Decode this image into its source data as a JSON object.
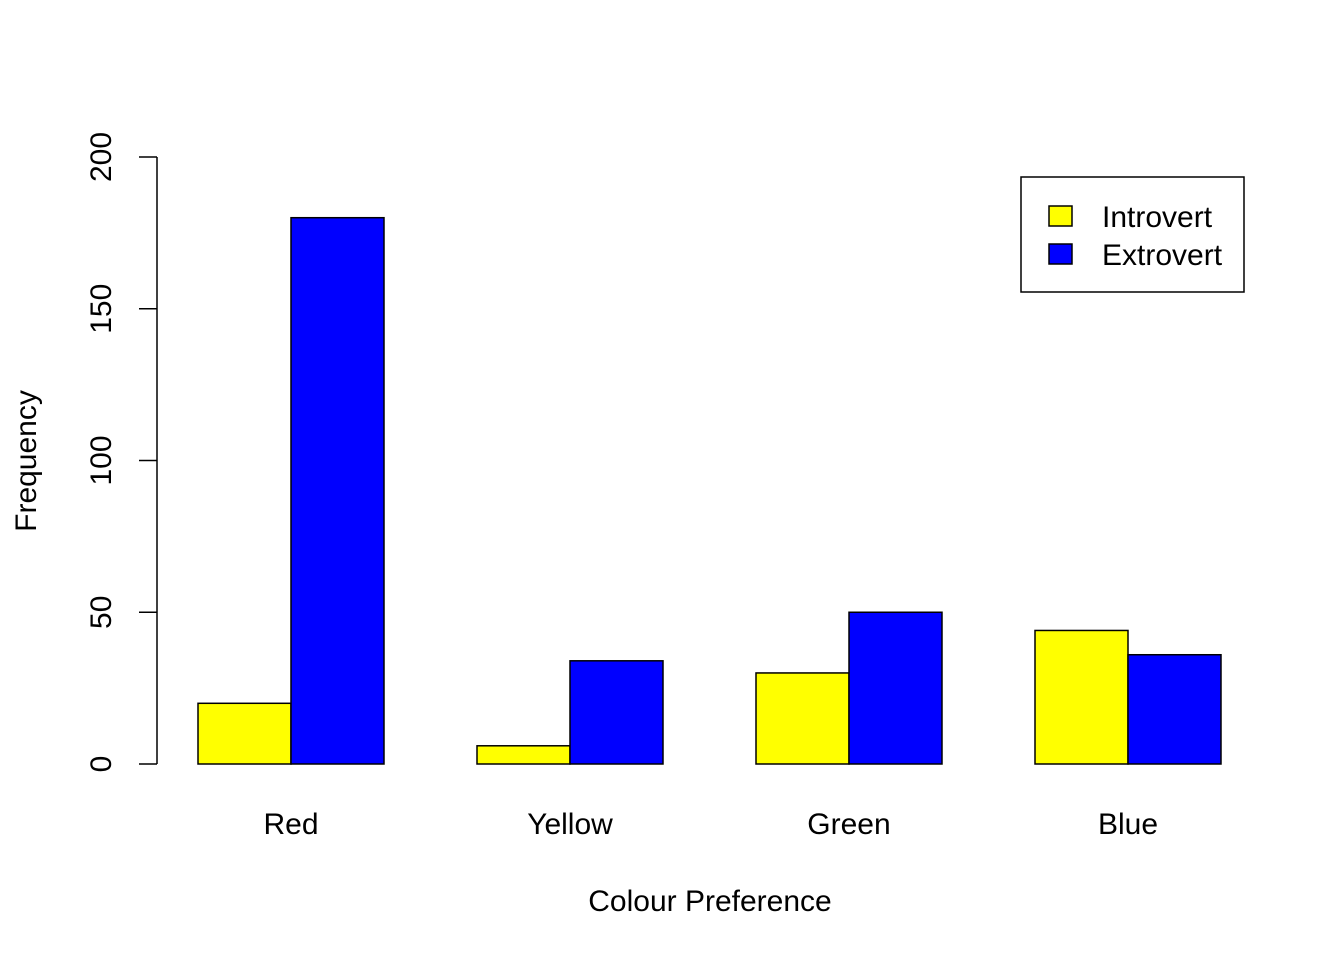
{
  "chart_data": {
    "type": "bar",
    "title": "",
    "xlabel": "Colour Preference",
    "ylabel": "Frequency",
    "categories": [
      "Red",
      "Yellow",
      "Green",
      "Blue"
    ],
    "series": [
      {
        "name": "Introvert",
        "color": "#ffff00",
        "values": [
          20,
          6,
          30,
          44
        ]
      },
      {
        "name": "Extrovert",
        "color": "#0000ff",
        "values": [
          180,
          34,
          50,
          36
        ]
      }
    ],
    "ylim": [
      0,
      200
    ],
    "yticks": [
      0,
      50,
      100,
      150,
      200
    ],
    "grid": false,
    "legend_position": "top-right"
  }
}
